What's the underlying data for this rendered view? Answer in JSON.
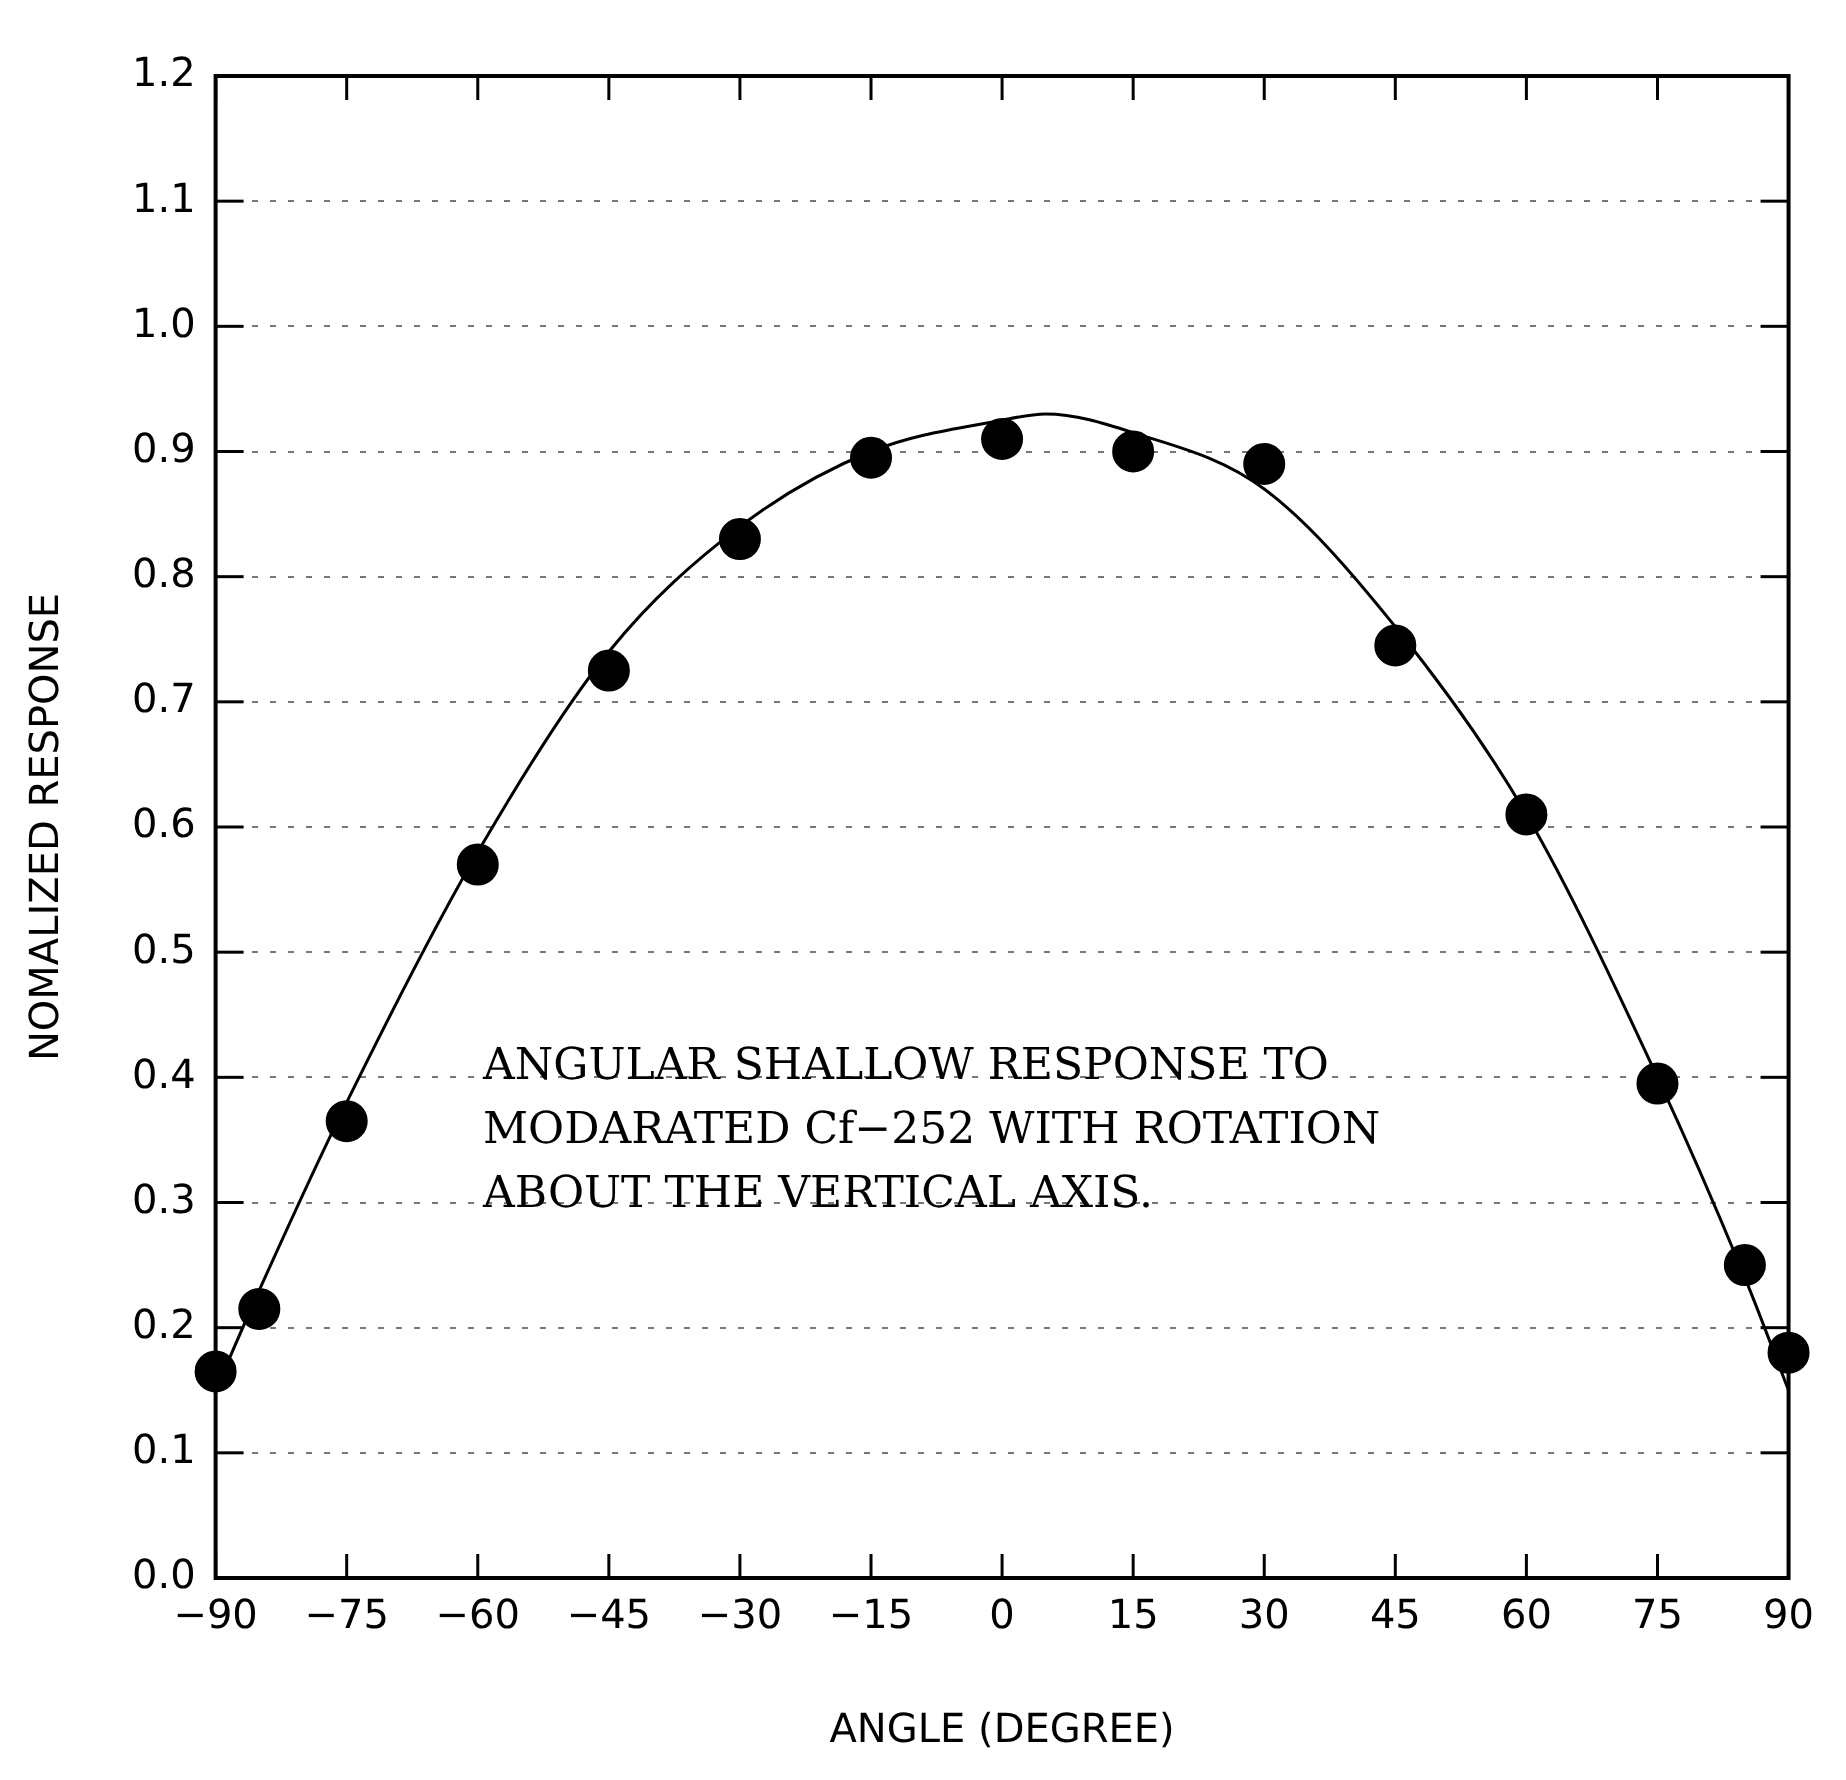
{
  "chart_data": {
    "type": "scatter",
    "xlabel": "ANGLE (DEGREE)",
    "ylabel": "NOMALIZED RESPONSE",
    "annotations": [
      "ANGULAR SHALLOW RESPONSE TO\nMODARATED Cf−252 WITH ROTATION\nABOUT THE VERTICAL AXIS."
    ],
    "xlim": [
      -90,
      90
    ],
    "xticks": [
      -90,
      -75,
      -60,
      -45,
      -30,
      -15,
      0,
      15,
      30,
      45,
      60,
      75,
      90
    ],
    "ylim": [
      0,
      1.2
    ],
    "yticks": [
      {
        "value": 0,
        "label": "0.0"
      },
      0.1,
      0.2,
      0.3,
      0.4,
      0.5,
      0.6,
      0.7,
      0.8,
      0.9,
      {
        "value": 1,
        "label": "1.0"
      },
      1.1,
      1.2
    ],
    "grid": "y",
    "marker": "circle",
    "legend": false,
    "series": [
      {
        "color": "#000000",
        "x": [
          -90,
          -85,
          -75,
          -60,
          -45,
          -30,
          -15,
          0,
          15,
          30,
          45,
          60,
          75,
          85,
          90
        ],
        "values": [
          0.165,
          0.215,
          0.365,
          0.57,
          0.725,
          0.83,
          0.895,
          0.91,
          0.9,
          0.89,
          0.745,
          0.61,
          0.395,
          0.25,
          0.18
        ]
      },
      {
        "type": "line",
        "color": "#000000",
        "marker": "none",
        "line_style": "solid",
        "x": [
          -90,
          -85,
          -75,
          -60,
          -45,
          -30,
          -15,
          0,
          5,
          15,
          30,
          45,
          60,
          75,
          85,
          90
        ],
        "values": [
          0.15,
          0.23,
          0.38,
          0.58,
          0.74,
          0.84,
          0.9,
          0.925,
          0.93,
          0.915,
          0.87,
          0.76,
          0.61,
          0.4,
          0.24,
          0.15
        ]
      }
    ]
  }
}
